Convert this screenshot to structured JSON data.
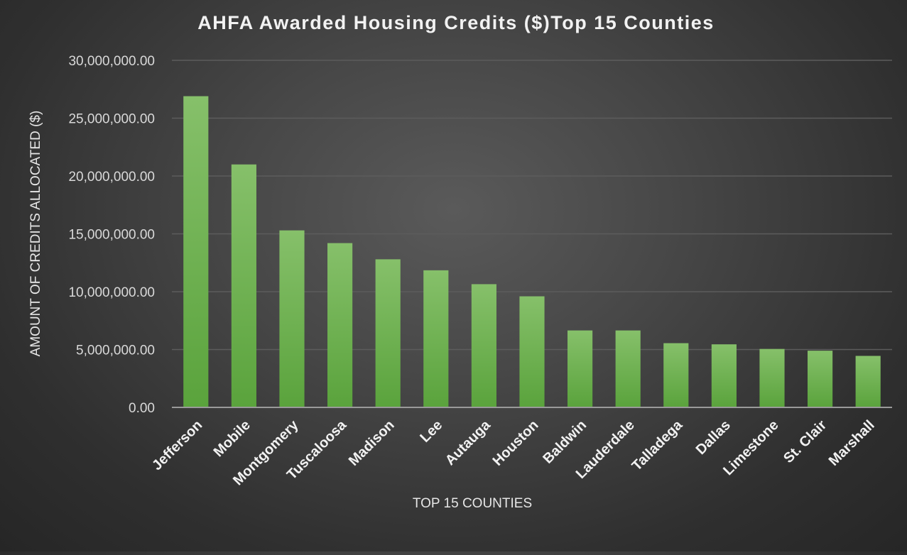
{
  "chart_data": {
    "type": "bar",
    "title": "AHFA Awarded Housing Credits ($)Top 15 Counties",
    "xlabel": "TOP 15 COUNTIES",
    "ylabel": "AMOUNT OF CREDITS ALLOCATED ($)",
    "categories": [
      "Jefferson",
      "Mobile",
      "Montgomery",
      "Tuscaloosa",
      "Madison",
      "Lee",
      "Autauga",
      "Houston",
      "Baldwin",
      "Lauderdale",
      "Talladega",
      "Dallas",
      "Limestone",
      "St. Clair",
      "Marshall"
    ],
    "values": [
      26900000,
      21000000,
      15300000,
      14200000,
      12800000,
      11850000,
      10650000,
      9600000,
      6650000,
      6650000,
      5550000,
      5450000,
      5050000,
      4900000,
      4450000
    ],
    "ylim": [
      0,
      30000000
    ],
    "yticks": [
      0,
      5000000,
      10000000,
      15000000,
      20000000,
      25000000,
      30000000
    ],
    "ytick_labels": [
      "0.00",
      "5,000,000.00",
      "10,000,000.00",
      "15,000,000.00",
      "20,000,000.00",
      "25,000,000.00",
      "30,000,000.00"
    ],
    "bar_color": "#6ab04c",
    "grid": true,
    "legend": "none"
  }
}
